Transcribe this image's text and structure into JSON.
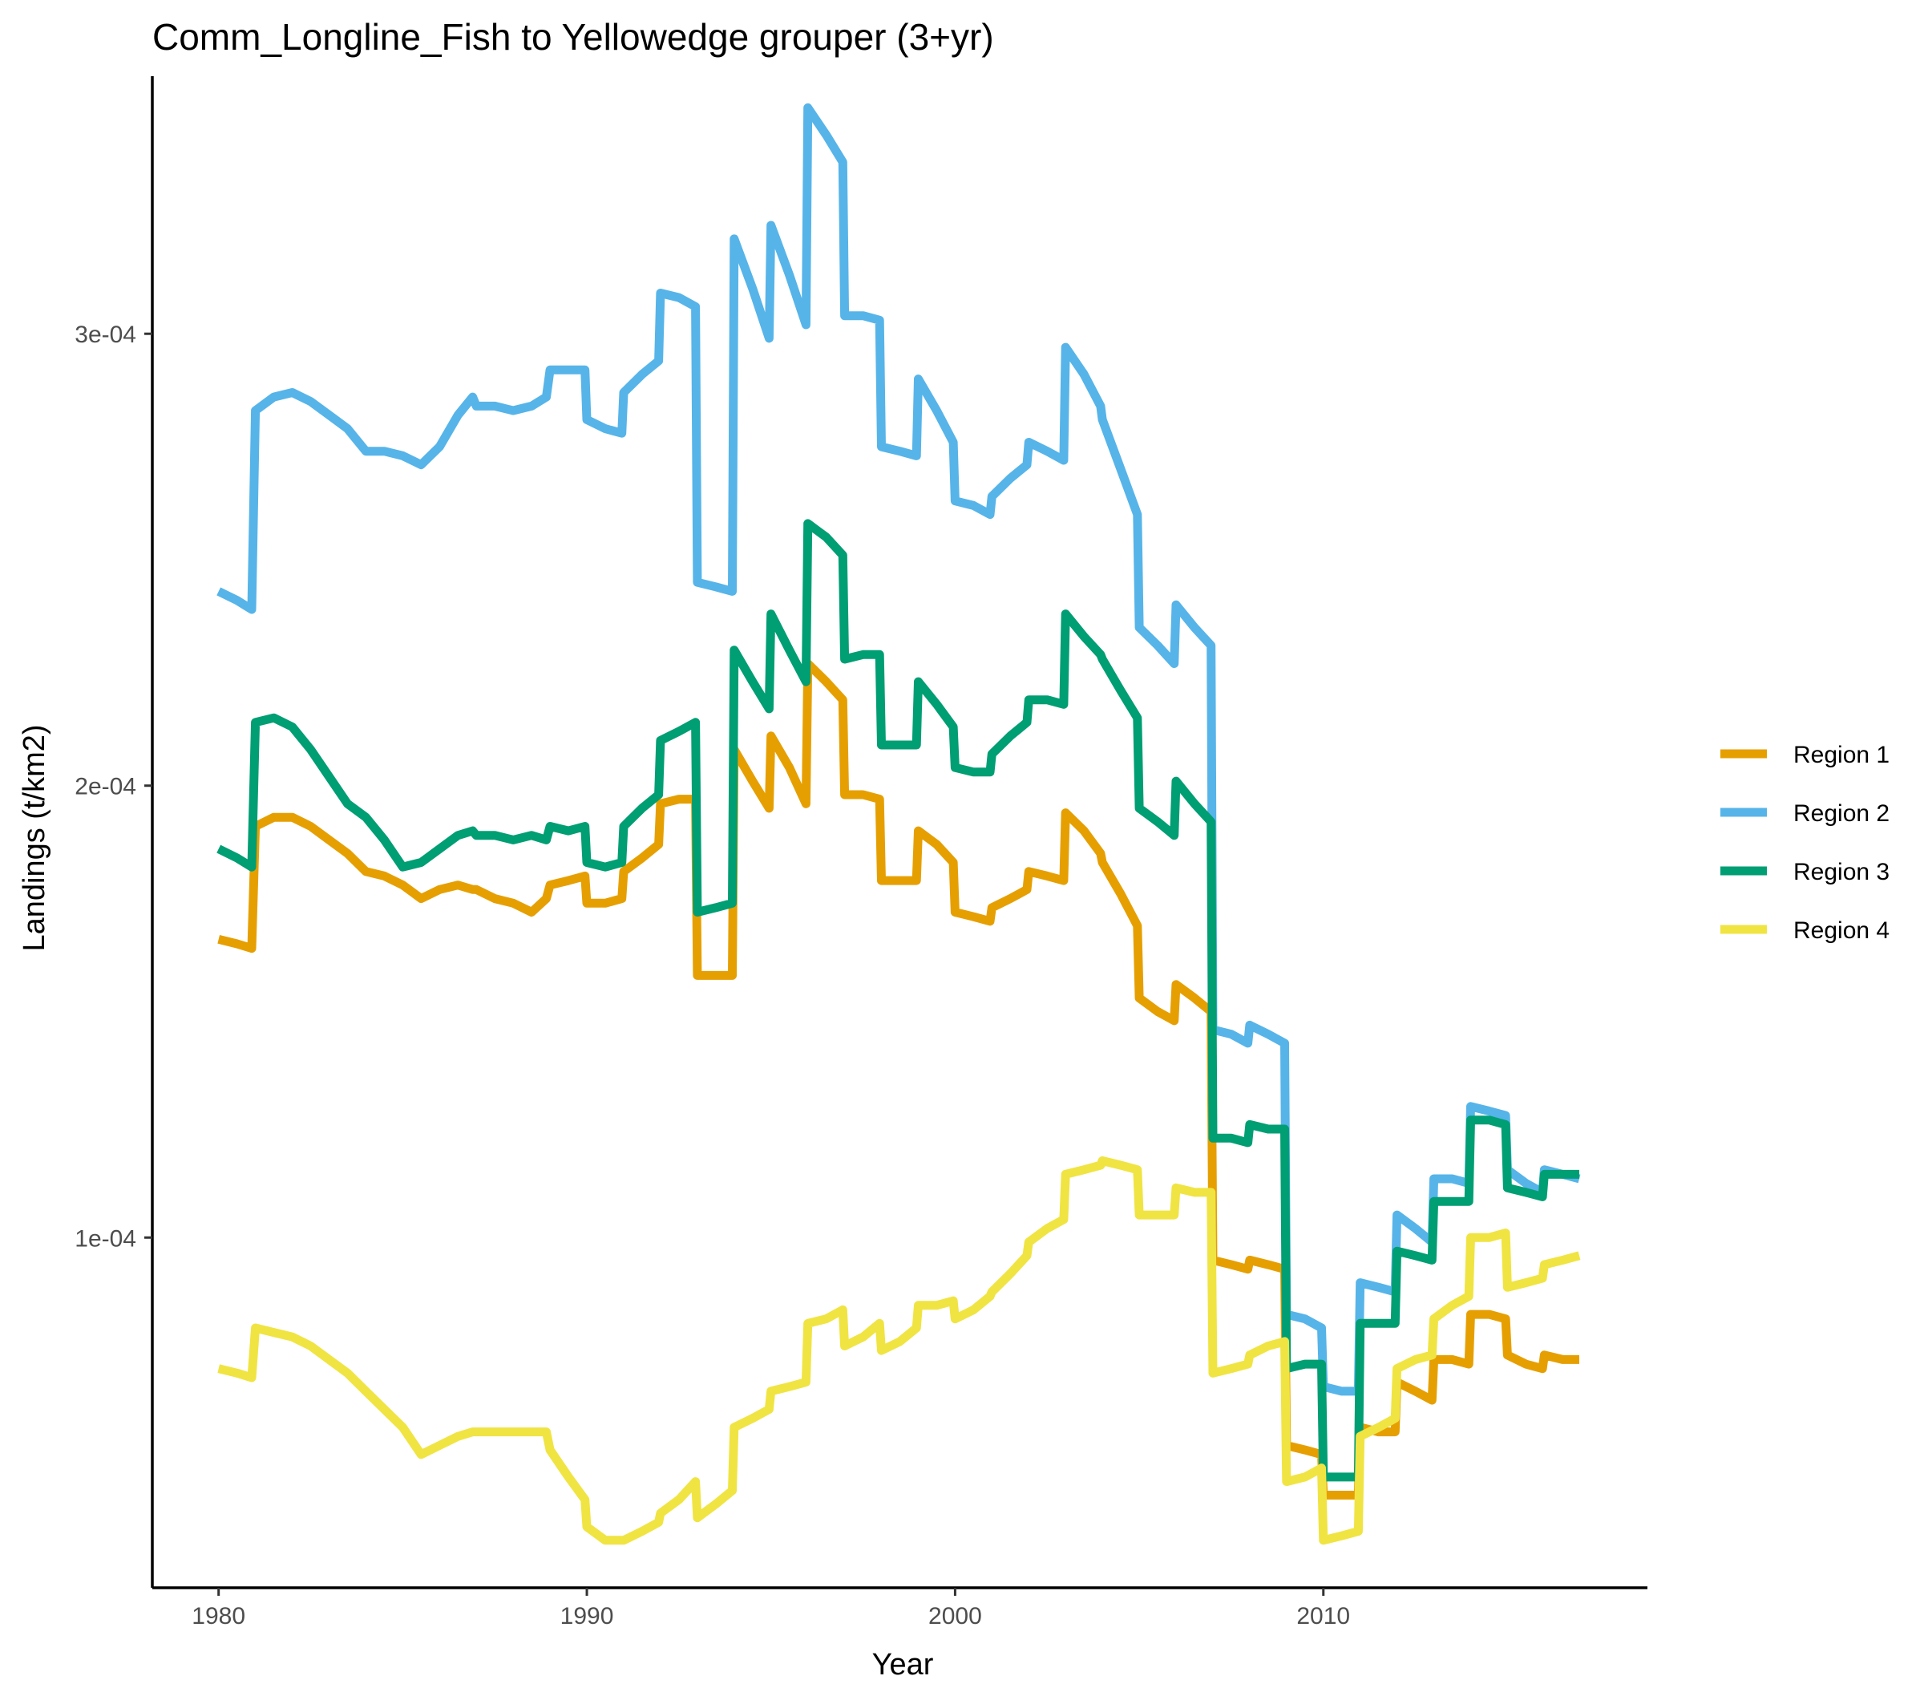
{
  "chart_data": {
    "type": "line",
    "title": "Comm_Longline_Fish to Yellowedge grouper (3+yr)",
    "xlabel": "Year",
    "ylabel": "Landings (t/km2)",
    "xlim": [
      1978.2,
      2018.8
    ],
    "ylim": [
      2.25e-05,
      0.000357
    ],
    "x_ticks": [
      1980,
      1990,
      2000,
      2010
    ],
    "x_tick_labels": [
      "1980",
      "1990",
      "2000",
      "2010"
    ],
    "y_ticks": [
      0.0001,
      0.0002,
      0.0003
    ],
    "y_tick_labels": [
      "1e-04",
      "2e-04",
      "3e-04"
    ],
    "grid": false,
    "legend_position": "right",
    "series": [
      {
        "name": "Region 1",
        "color": "#E69F00",
        "x": [
          1980.0,
          1980.5,
          1980.9,
          1981.0,
          1981.5,
          1982.0,
          1982.5,
          1983.0,
          1983.5,
          1984.0,
          1984.5,
          1985.0,
          1985.5,
          1986.0,
          1986.5,
          1986.9,
          1987.0,
          1987.5,
          1988.0,
          1988.5,
          1988.9,
          1989.0,
          1989.5,
          1989.95,
          1990.0,
          1990.5,
          1990.95,
          1991.0,
          1991.5,
          1991.95,
          1992.0,
          1992.5,
          1992.95,
          1993.0,
          1993.5,
          1993.95,
          1994.0,
          1994.5,
          1994.95,
          1995.0,
          1995.5,
          1995.95,
          1996.0,
          1996.5,
          1996.95,
          1997.0,
          1997.5,
          1997.95,
          1998.0,
          1998.5,
          1998.95,
          1999.0,
          1999.5,
          1999.95,
          2000.0,
          2000.5,
          2000.95,
          2001.0,
          2001.5,
          2001.95,
          2002.0,
          2002.5,
          2002.95,
          2003.0,
          2003.5,
          2003.95,
          2004.0,
          2004.5,
          2004.95,
          2005.0,
          2005.5,
          2005.95,
          2006.0,
          2006.5,
          2006.95,
          2007.0,
          2007.5,
          2007.95,
          2008.0,
          2008.5,
          2008.95,
          2009.0,
          2009.5,
          2009.95,
          2010.0,
          2010.5,
          2010.95,
          2011.0,
          2011.5,
          2011.95,
          2012.0,
          2012.5,
          2012.95,
          2013.0,
          2013.5,
          2013.95,
          2014.0,
          2014.5,
          2014.95,
          2015.0,
          2015.5,
          2015.95,
          2016.0,
          2016.5,
          2016.95
        ],
        "values": [
          0.000166,
          0.000165,
          0.000164,
          0.000191,
          0.000193,
          0.000193,
          0.000191,
          0.000188,
          0.000185,
          0.000181,
          0.00018,
          0.000178,
          0.000175,
          0.000177,
          0.000178,
          0.000177,
          0.000177,
          0.000175,
          0.000174,
          0.000172,
          0.000175,
          0.000178,
          0.000179,
          0.00018,
          0.000174,
          0.000174,
          0.000175,
          0.000181,
          0.000184,
          0.000187,
          0.000196,
          0.000197,
          0.000197,
          0.000158,
          0.000158,
          0.000158,
          0.000208,
          0.000201,
          0.000195,
          0.000211,
          0.000204,
          0.000196,
          0.000227,
          0.000223,
          0.000219,
          0.000198,
          0.000198,
          0.000197,
          0.000179,
          0.000179,
          0.000179,
          0.00019,
          0.000187,
          0.000183,
          0.000172,
          0.000171,
          0.00017,
          0.000173,
          0.000175,
          0.000177,
          0.000181,
          0.00018,
          0.000179,
          0.000194,
          0.00019,
          0.000185,
          0.000183,
          0.000176,
          0.000169,
          0.000153,
          0.00015,
          0.000148,
          0.000156,
          0.000153,
          0.00015,
          9.5e-05,
          9.4e-05,
          9.3e-05,
          9.5e-05,
          9.4e-05,
          9.3e-05,
          5.4e-05,
          5.3e-05,
          5.2e-05,
          4.3e-05,
          4.3e-05,
          4.3e-05,
          5.8e-05,
          5.7e-05,
          5.7e-05,
          6.8e-05,
          6.6e-05,
          6.4e-05,
          7.3e-05,
          7.3e-05,
          7.2e-05,
          8.3e-05,
          8.3e-05,
          8.2e-05,
          7.4e-05,
          7.2e-05,
          7.1e-05,
          7.4e-05,
          7.3e-05,
          7.3e-05
        ]
      },
      {
        "name": "Region 2",
        "color": "#56B4E9",
        "x": [
          1980.0,
          1980.5,
          1980.9,
          1981.0,
          1981.5,
          1982.0,
          1982.5,
          1983.0,
          1983.5,
          1984.0,
          1984.5,
          1985.0,
          1985.5,
          1986.0,
          1986.5,
          1986.9,
          1987.0,
          1987.5,
          1988.0,
          1988.5,
          1988.9,
          1989.0,
          1989.5,
          1989.95,
          1990.0,
          1990.5,
          1990.95,
          1991.0,
          1991.5,
          1991.95,
          1992.0,
          1992.5,
          1992.95,
          1993.0,
          1993.5,
          1993.95,
          1994.0,
          1994.5,
          1994.95,
          1995.0,
          1995.5,
          1995.95,
          1996.0,
          1996.5,
          1996.95,
          1997.0,
          1997.5,
          1997.95,
          1998.0,
          1998.5,
          1998.95,
          1999.0,
          1999.5,
          1999.95,
          2000.0,
          2000.5,
          2000.95,
          2001.0,
          2001.5,
          2001.95,
          2002.0,
          2002.5,
          2002.95,
          2003.0,
          2003.5,
          2003.95,
          2004.0,
          2004.5,
          2004.95,
          2005.0,
          2005.5,
          2005.95,
          2006.0,
          2006.5,
          2006.95,
          2007.0,
          2007.5,
          2007.95,
          2008.0,
          2008.5,
          2008.95,
          2009.0,
          2009.5,
          2009.95,
          2010.0,
          2010.5,
          2010.95,
          2011.0,
          2011.5,
          2011.95,
          2012.0,
          2012.5,
          2012.95,
          2013.0,
          2013.5,
          2013.95,
          2014.0,
          2014.5,
          2014.95,
          2015.0,
          2015.5,
          2015.95,
          2016.0,
          2016.5,
          2016.95
        ],
        "values": [
          0.000243,
          0.000241,
          0.000239,
          0.000283,
          0.000286,
          0.000287,
          0.000285,
          0.000282,
          0.000279,
          0.000274,
          0.000274,
          0.000273,
          0.000271,
          0.000275,
          0.000282,
          0.000286,
          0.000284,
          0.000284,
          0.000283,
          0.000284,
          0.000286,
          0.000292,
          0.000292,
          0.000292,
          0.000281,
          0.000279,
          0.000278,
          0.000287,
          0.000291,
          0.000294,
          0.000309,
          0.000308,
          0.000306,
          0.000245,
          0.000244,
          0.000243,
          0.000321,
          0.00031,
          0.000299,
          0.000324,
          0.000313,
          0.000302,
          0.00035,
          0.000344,
          0.000338,
          0.000304,
          0.000304,
          0.000303,
          0.000275,
          0.000274,
          0.000273,
          0.00029,
          0.000283,
          0.000276,
          0.000263,
          0.000262,
          0.00026,
          0.000264,
          0.000268,
          0.000271,
          0.000276,
          0.000274,
          0.000272,
          0.000297,
          0.000291,
          0.000284,
          0.000281,
          0.00027,
          0.00026,
          0.000235,
          0.000231,
          0.000227,
          0.00024,
          0.000235,
          0.000231,
          0.000146,
          0.000145,
          0.000143,
          0.000147,
          0.000145,
          0.000143,
          8.3e-05,
          8.2e-05,
          8e-05,
          6.7e-05,
          6.6e-05,
          6.6e-05,
          9e-05,
          8.9e-05,
          8.8e-05,
          0.000105,
          0.000102,
          9.9e-05,
          0.000113,
          0.000113,
          0.000112,
          0.000129,
          0.000128,
          0.000127,
          0.000115,
          0.000112,
          0.00011,
          0.000115,
          0.000114,
          0.000113
        ]
      },
      {
        "name": "Region 3",
        "color": "#009E73",
        "x": [
          1980.0,
          1980.5,
          1980.9,
          1981.0,
          1981.5,
          1982.0,
          1982.5,
          1983.0,
          1983.5,
          1984.0,
          1984.5,
          1985.0,
          1985.5,
          1986.0,
          1986.5,
          1986.9,
          1987.0,
          1987.5,
          1988.0,
          1988.5,
          1988.9,
          1989.0,
          1989.5,
          1989.95,
          1990.0,
          1990.5,
          1990.95,
          1991.0,
          1991.5,
          1991.95,
          1992.0,
          1992.5,
          1992.95,
          1993.0,
          1993.5,
          1993.95,
          1994.0,
          1994.5,
          1994.95,
          1995.0,
          1995.5,
          1995.95,
          1996.0,
          1996.5,
          1996.95,
          1997.0,
          1997.5,
          1997.95,
          1998.0,
          1998.5,
          1998.95,
          1999.0,
          1999.5,
          1999.95,
          2000.0,
          2000.5,
          2000.95,
          2001.0,
          2001.5,
          2001.95,
          2002.0,
          2002.5,
          2002.95,
          2003.0,
          2003.5,
          2003.95,
          2004.0,
          2004.5,
          2004.95,
          2005.0,
          2005.5,
          2005.95,
          2006.0,
          2006.5,
          2006.95,
          2007.0,
          2007.5,
          2007.95,
          2008.0,
          2008.5,
          2008.95,
          2009.0,
          2009.5,
          2009.95,
          2010.0,
          2010.5,
          2010.95,
          2011.0,
          2011.5,
          2011.95,
          2012.0,
          2012.5,
          2012.95,
          2013.0,
          2013.5,
          2013.95,
          2014.0,
          2014.5,
          2014.95,
          2015.0,
          2015.5,
          2015.95,
          2016.0,
          2016.5,
          2016.95
        ],
        "values": [
          0.000186,
          0.000184,
          0.000182,
          0.000214,
          0.000215,
          0.000213,
          0.000208,
          0.000202,
          0.000196,
          0.000193,
          0.000188,
          0.000182,
          0.000183,
          0.000186,
          0.000189,
          0.00019,
          0.000189,
          0.000189,
          0.000188,
          0.000189,
          0.000188,
          0.000191,
          0.00019,
          0.000191,
          0.000183,
          0.000182,
          0.000183,
          0.000191,
          0.000195,
          0.000198,
          0.00021,
          0.000212,
          0.000214,
          0.000172,
          0.000173,
          0.000174,
          0.00023,
          0.000223,
          0.000217,
          0.000238,
          0.00023,
          0.000223,
          0.000258,
          0.000255,
          0.000251,
          0.000228,
          0.000229,
          0.000229,
          0.000209,
          0.000209,
          0.000209,
          0.000223,
          0.000218,
          0.000213,
          0.000204,
          0.000203,
          0.000203,
          0.000207,
          0.000211,
          0.000214,
          0.000219,
          0.000219,
          0.000218,
          0.000238,
          0.000233,
          0.000229,
          0.000228,
          0.000221,
          0.000215,
          0.000195,
          0.000192,
          0.000189,
          0.000201,
          0.000196,
          0.000192,
          0.000122,
          0.000122,
          0.000121,
          0.000125,
          0.000124,
          0.000124,
          7.1e-05,
          7.2e-05,
          7.2e-05,
          4.7e-05,
          4.7e-05,
          4.7e-05,
          8.1e-05,
          8.1e-05,
          8.1e-05,
          9.7e-05,
          9.6e-05,
          9.5e-05,
          0.000108,
          0.000108,
          0.000108,
          0.000126,
          0.000126,
          0.000125,
          0.000111,
          0.00011,
          0.000109,
          0.000114,
          0.000114,
          0.000114
        ]
      },
      {
        "name": "Region 4",
        "color": "#F0E442",
        "x": [
          1980.0,
          1980.5,
          1980.9,
          1981.0,
          1981.5,
          1982.0,
          1982.5,
          1983.0,
          1983.5,
          1984.0,
          1984.5,
          1985.0,
          1985.5,
          1986.0,
          1986.5,
          1986.9,
          1987.0,
          1987.5,
          1988.0,
          1988.5,
          1988.9,
          1989.0,
          1989.5,
          1989.95,
          1990.0,
          1990.5,
          1990.95,
          1991.0,
          1991.5,
          1991.95,
          1992.0,
          1992.5,
          1992.95,
          1993.0,
          1993.5,
          1993.95,
          1994.0,
          1994.5,
          1994.95,
          1995.0,
          1995.5,
          1995.95,
          1996.0,
          1996.5,
          1996.95,
          1997.0,
          1997.5,
          1997.95,
          1998.0,
          1998.5,
          1998.95,
          1999.0,
          1999.5,
          1999.95,
          2000.0,
          2000.5,
          2000.95,
          2001.0,
          2001.5,
          2001.95,
          2002.0,
          2002.5,
          2002.95,
          2003.0,
          2003.5,
          2003.95,
          2004.0,
          2004.5,
          2004.95,
          2005.0,
          2005.5,
          2005.95,
          2006.0,
          2006.5,
          2006.95,
          2007.0,
          2007.5,
          2007.95,
          2008.0,
          2008.5,
          2008.95,
          2009.0,
          2009.5,
          2009.95,
          2010.0,
          2010.5,
          2010.95,
          2011.0,
          2011.5,
          2011.95,
          2012.0,
          2012.5,
          2012.95,
          2013.0,
          2013.5,
          2013.95,
          2014.0,
          2014.5,
          2014.95,
          2015.0,
          2015.5,
          2015.95,
          2016.0,
          2016.5,
          2016.95
        ],
        "values": [
          7.1e-05,
          7e-05,
          6.9e-05,
          8e-05,
          7.9e-05,
          7.8e-05,
          7.6e-05,
          7.3e-05,
          7e-05,
          6.6e-05,
          6.2e-05,
          5.8e-05,
          5.2e-05,
          5.4e-05,
          5.6e-05,
          5.7e-05,
          5.7e-05,
          5.7e-05,
          5.7e-05,
          5.7e-05,
          5.7e-05,
          5.3e-05,
          4.7e-05,
          4.2e-05,
          3.6e-05,
          3.3e-05,
          3.3e-05,
          3.3e-05,
          3.5e-05,
          3.7e-05,
          3.9e-05,
          4.2e-05,
          4.6e-05,
          3.8e-05,
          4.1e-05,
          4.4e-05,
          5.8e-05,
          6e-05,
          6.2e-05,
          6.6e-05,
          6.7e-05,
          6.8e-05,
          8.1e-05,
          8.2e-05,
          8.4e-05,
          7.6e-05,
          7.8e-05,
          8.1e-05,
          7.5e-05,
          7.7e-05,
          8e-05,
          8.5e-05,
          8.5e-05,
          8.6e-05,
          8.2e-05,
          8.4e-05,
          8.7e-05,
          8.8e-05,
          9.2e-05,
          9.6e-05,
          9.9e-05,
          0.000102,
          0.000104,
          0.000114,
          0.000115,
          0.000116,
          0.000117,
          0.000116,
          0.000115,
          0.000105,
          0.000105,
          0.000105,
          0.000111,
          0.00011,
          0.00011,
          7e-05,
          7.1e-05,
          7.2e-05,
          7.4e-05,
          7.6e-05,
          7.7e-05,
          4.6e-05,
          4.7e-05,
          4.9e-05,
          3.3e-05,
          3.4e-05,
          3.5e-05,
          5.6e-05,
          5.8e-05,
          6e-05,
          7.1e-05,
          7.3e-05,
          7.4e-05,
          8.2e-05,
          8.5e-05,
          8.7e-05,
          0.0001,
          0.0001,
          0.000101,
          8.9e-05,
          9e-05,
          9.1e-05,
          9.4e-05,
          9.5e-05,
          9.6e-05
        ]
      }
    ]
  }
}
